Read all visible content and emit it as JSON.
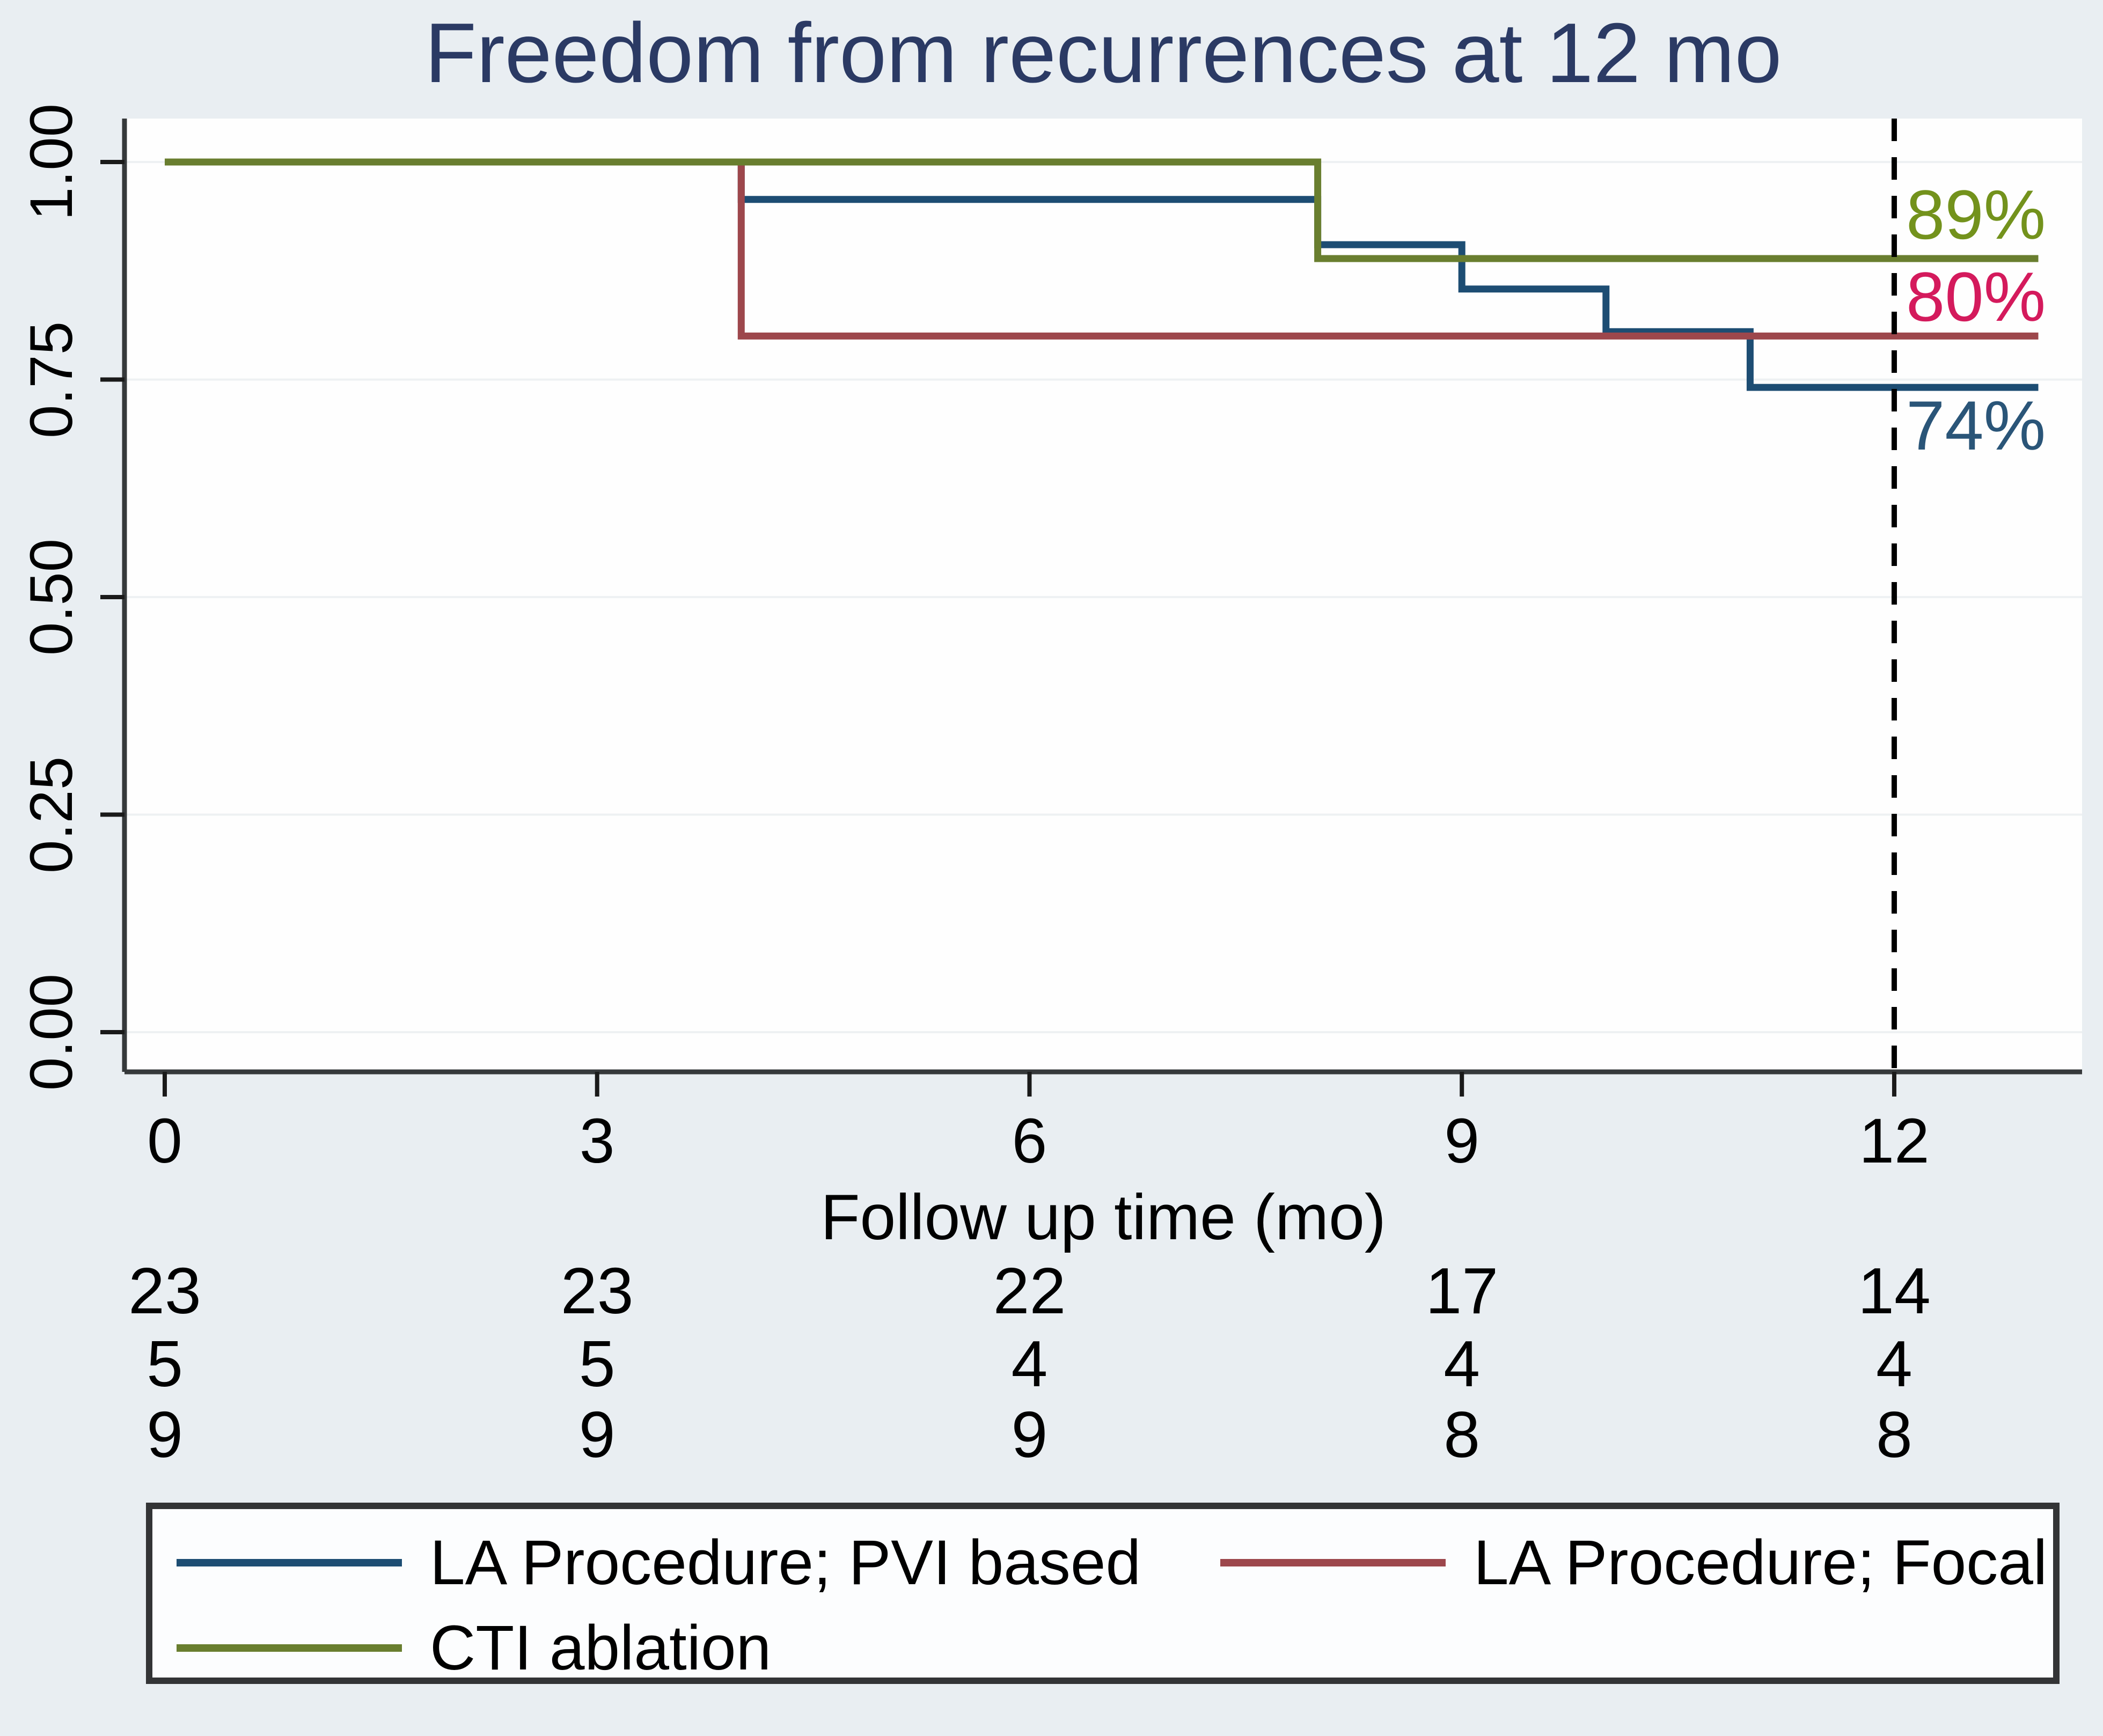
{
  "figure": {
    "background": "#e9eef2",
    "plot_background": "#fefefe"
  },
  "chart_data": {
    "type": "line",
    "chart_kind": "kaplan_meier_step",
    "title": "Freedom from recurrences at 12 mo",
    "title_color": "#2b3a64",
    "xlabel": "Follow up time (mo)",
    "ylabel": "",
    "xlim": [
      -0.28,
      13.3
    ],
    "ylim": [
      -0.046,
      1.05
    ],
    "xticks": [
      0,
      3,
      6,
      9,
      12
    ],
    "ytick_labels": [
      "0.00",
      "0.25",
      "0.50",
      "0.75",
      "1.00"
    ],
    "ytick_values": [
      0,
      0.25,
      0.5,
      0.75,
      1
    ],
    "grid": "horizontal",
    "gridline_color": "#eef1f3",
    "axis_color": "#36393b",
    "tick_color": "#1a1a1a",
    "reference_line": {
      "x": 12,
      "style": "dashed",
      "color": "#000000"
    },
    "series": [
      {
        "name": "LA Procedure; PVI based",
        "color": "#1d4d73",
        "final_label": "74%",
        "final_label_color": "#2a5578",
        "points": [
          [
            0,
            1
          ],
          [
            4,
            1
          ],
          [
            4,
            0.957
          ],
          [
            8,
            0.957
          ],
          [
            8,
            0.905
          ],
          [
            9,
            0.905
          ],
          [
            9,
            0.854
          ],
          [
            10,
            0.854
          ],
          [
            10,
            0.805
          ],
          [
            11,
            0.805
          ],
          [
            11,
            0.741
          ],
          [
            13,
            0.741
          ]
        ]
      },
      {
        "name": "LA Procedure; Focal",
        "color": "#9d474c",
        "final_label": "80%",
        "final_label_color": "#d41a5c",
        "points": [
          [
            0,
            1
          ],
          [
            4,
            1
          ],
          [
            4,
            0.8
          ],
          [
            13,
            0.8
          ]
        ]
      },
      {
        "name": "CTI ablation",
        "color": "#697e2f",
        "final_label": "89%",
        "final_label_color": "#73921c",
        "points": [
          [
            0,
            1
          ],
          [
            8,
            1
          ],
          [
            8,
            0.889
          ],
          [
            13,
            0.889
          ]
        ]
      }
    ],
    "risk_table": {
      "times": [
        0,
        3,
        6,
        9,
        12
      ],
      "rows": [
        {
          "series": "LA Procedure; PVI based",
          "counts": [
            23,
            23,
            22,
            17,
            14
          ]
        },
        {
          "series": "LA Procedure; Focal",
          "counts": [
            5,
            5,
            4,
            4,
            4
          ]
        },
        {
          "series": "CTI ablation",
          "counts": [
            9,
            9,
            9,
            8,
            8
          ]
        }
      ]
    },
    "legend": {
      "position": "bottom",
      "entries": [
        "LA Procedure; PVI based",
        "LA Procedure; Focal",
        "CTI ablation"
      ]
    }
  }
}
